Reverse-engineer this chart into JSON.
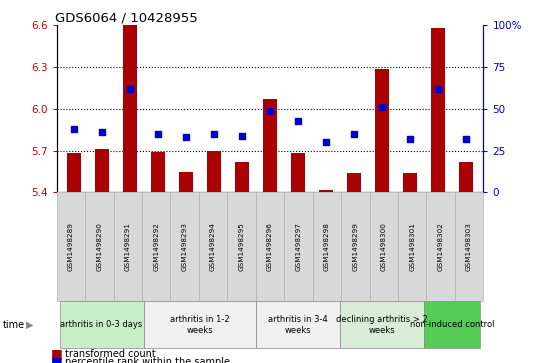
{
  "title": "GDS6064 / 10428955",
  "samples": [
    "GSM1498289",
    "GSM1498290",
    "GSM1498291",
    "GSM1498292",
    "GSM1498293",
    "GSM1498294",
    "GSM1498295",
    "GSM1498296",
    "GSM1498297",
    "GSM1498298",
    "GSM1498299",
    "GSM1498300",
    "GSM1498301",
    "GSM1498302",
    "GSM1498303"
  ],
  "red_values": [
    5.68,
    5.71,
    6.6,
    5.69,
    5.55,
    5.7,
    5.62,
    6.07,
    5.68,
    5.42,
    5.54,
    6.29,
    5.54,
    6.58,
    5.62
  ],
  "blue_values": [
    38,
    36,
    62,
    35,
    33,
    35,
    34,
    49,
    43,
    30,
    35,
    51,
    32,
    62,
    32
  ],
  "ylim_left": [
    5.4,
    6.6
  ],
  "ylim_right": [
    0,
    100
  ],
  "yticks_left": [
    5.4,
    5.7,
    6.0,
    6.3,
    6.6
  ],
  "yticks_right": [
    0,
    25,
    50,
    75,
    100
  ],
  "ytick_labels_right": [
    "0",
    "25",
    "50",
    "75",
    "100%"
  ],
  "group_spans": [
    {
      "start": 0,
      "end": 2,
      "label": "arthritis in 0-3 days",
      "color": "#c8eec8"
    },
    {
      "start": 3,
      "end": 6,
      "label": "arthritis in 1-2\nweeks",
      "color": "#f0f0f0"
    },
    {
      "start": 7,
      "end": 9,
      "label": "arthritis in 3-4\nweeks",
      "color": "#f0f0f0"
    },
    {
      "start": 10,
      "end": 12,
      "label": "declining arthritis > 2\nweeks",
      "color": "#d8ecd8"
    },
    {
      "start": 13,
      "end": 14,
      "label": "non-induced control",
      "color": "#55cc55"
    }
  ],
  "bar_color": "#aa0000",
  "dot_color": "#0000cc",
  "left_axis_color": "#cc0000",
  "right_axis_color": "#0000cc",
  "legend_red": "transformed count",
  "legend_blue": "percentile rank within the sample",
  "bar_width": 0.5
}
